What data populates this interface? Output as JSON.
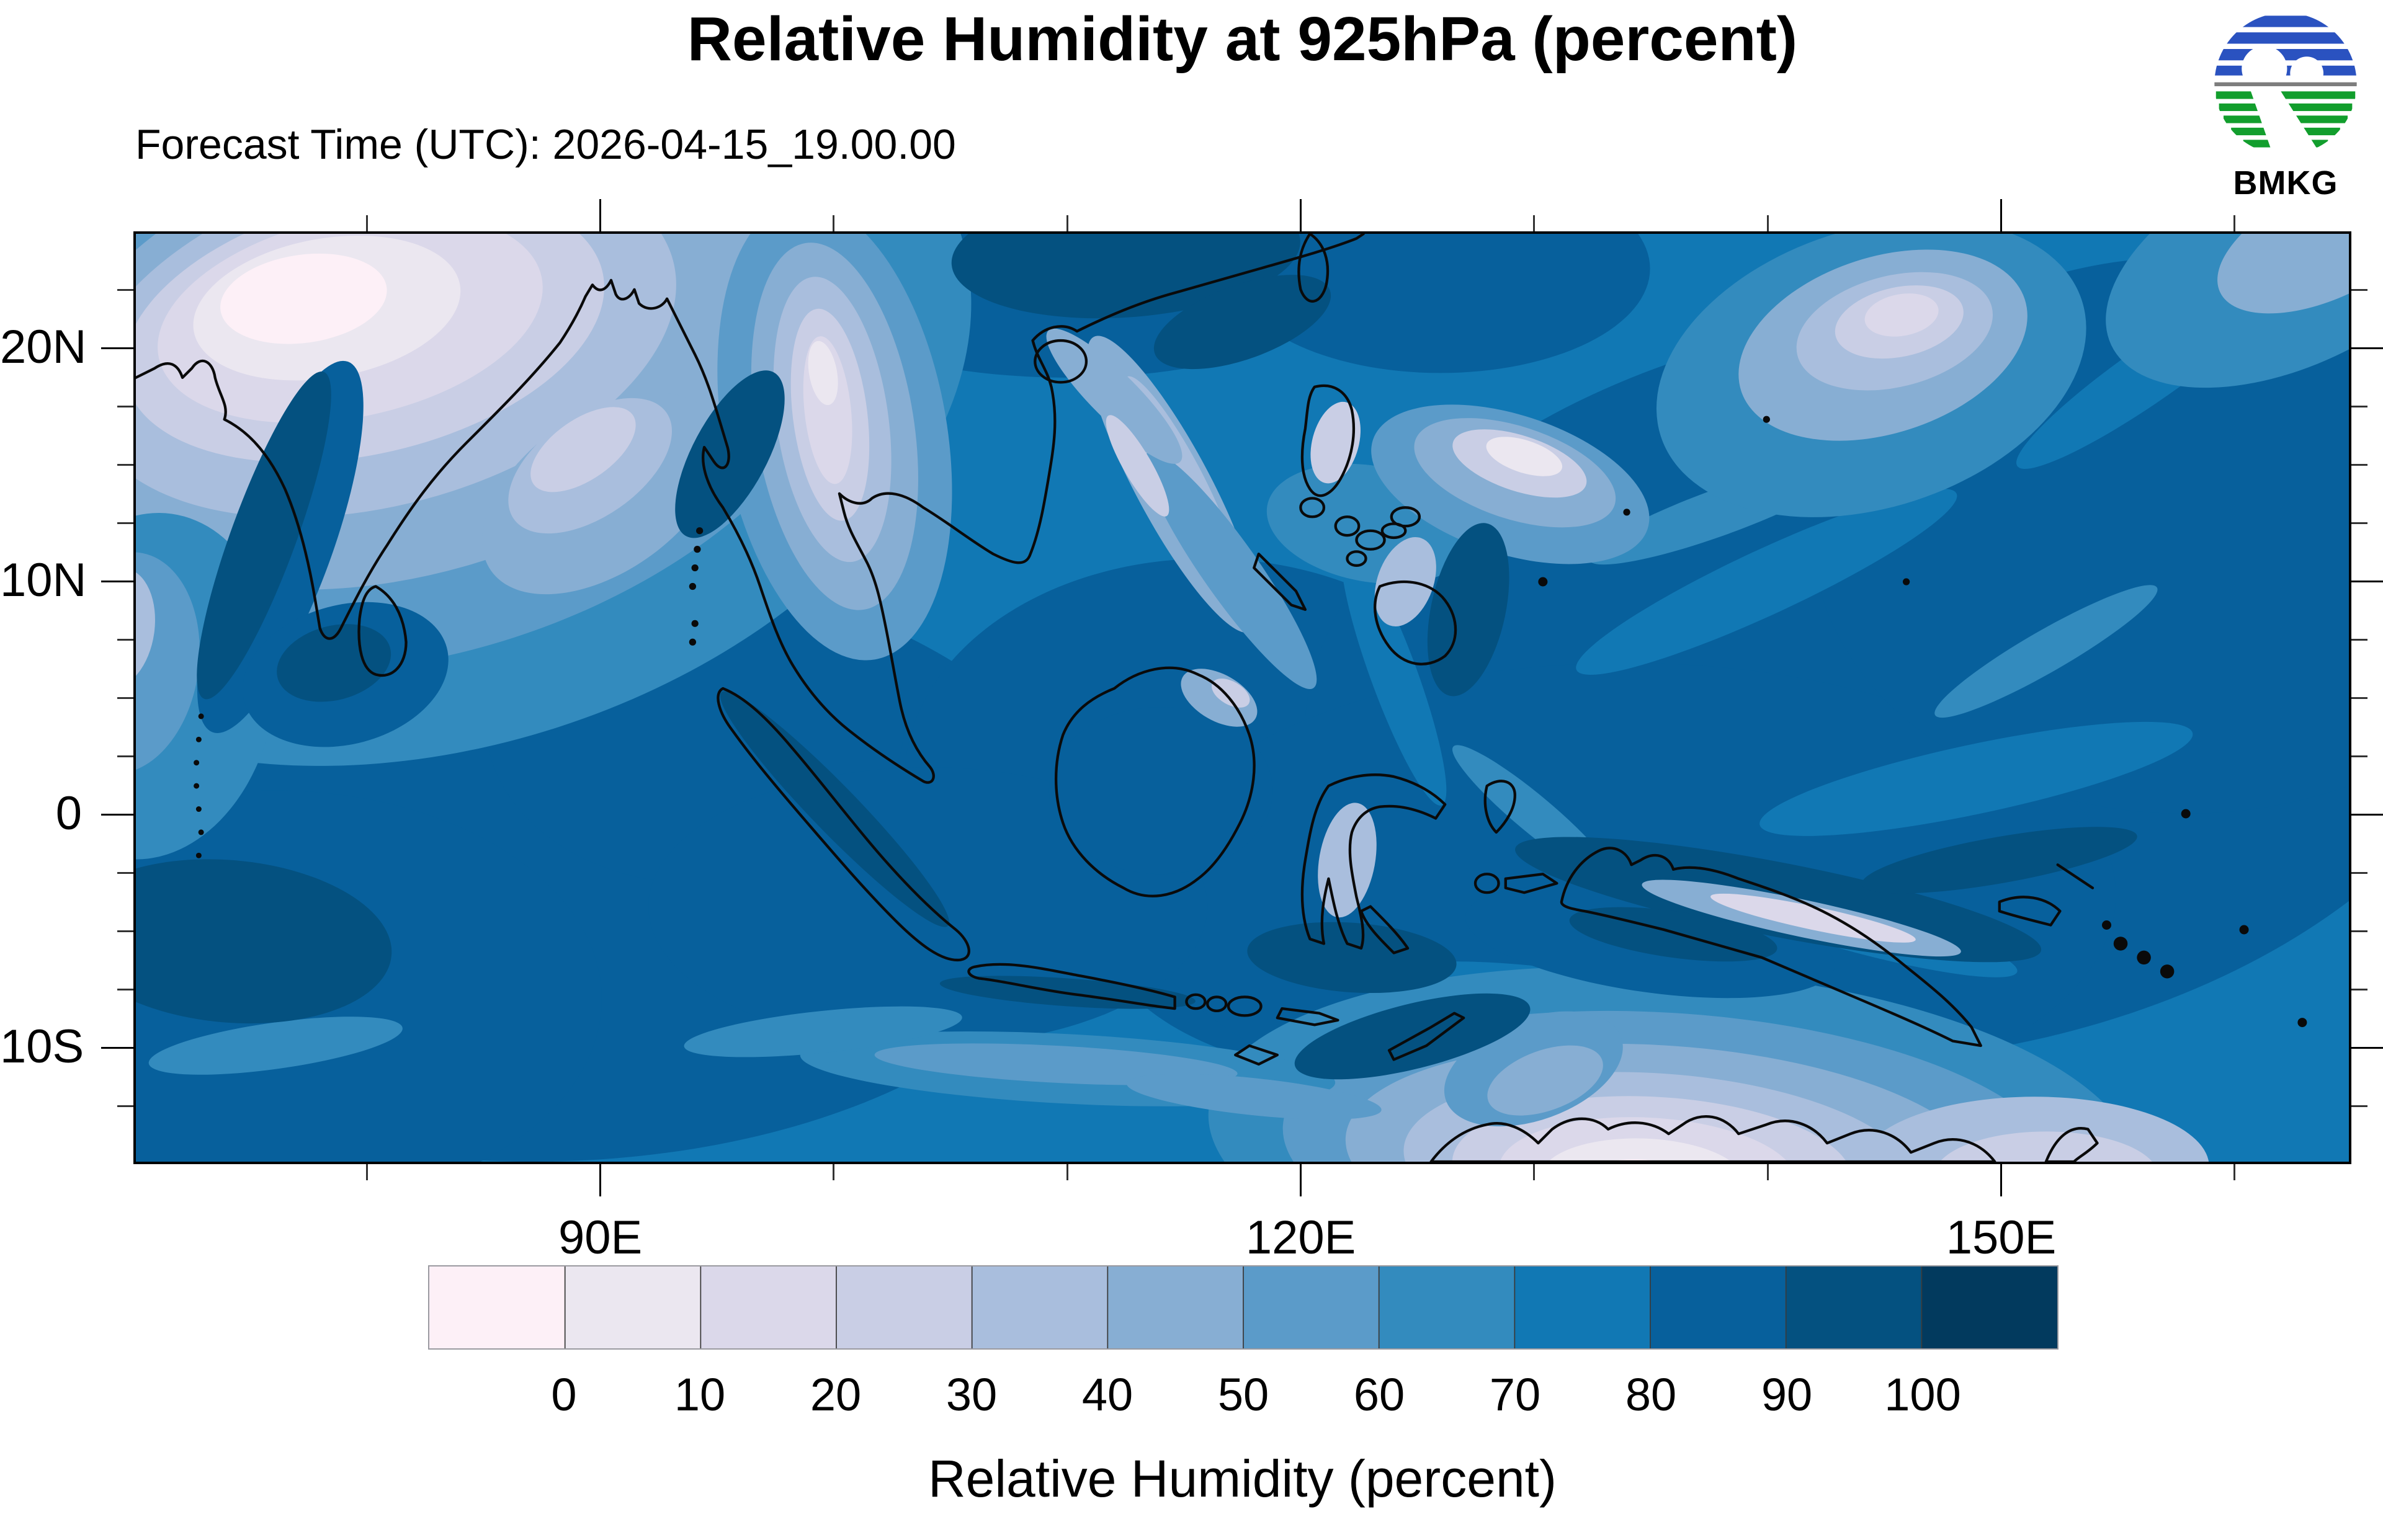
{
  "header": {
    "title": "Relative Humidity at 925hPa (percent)",
    "forecast_time_label": "Forecast Time (UTC): 2026-04-15_19.00.00",
    "logo_text": "BMKG"
  },
  "map": {
    "domain": {
      "lon_min": 70,
      "lon_max": 165,
      "lat_min": -15,
      "lat_max": 25
    },
    "lat_labels": [
      {
        "text": "20N",
        "value": 20
      },
      {
        "text": "10N",
        "value": 10
      },
      {
        "text": "0",
        "value": 0
      },
      {
        "text": "10S",
        "value": -10
      }
    ],
    "lon_labels": [
      {
        "text": "90E",
        "value": 90
      },
      {
        "text": "120E",
        "value": 120
      },
      {
        "text": "150E",
        "value": 150
      }
    ],
    "lat_minor_step": 2.5,
    "lon_minor_step": 10
  },
  "legend": {
    "title": "Relative Humidity (percent)",
    "tick_labels": [
      "0",
      "10",
      "20",
      "30",
      "40",
      "50",
      "60",
      "70",
      "80",
      "90",
      "100"
    ],
    "colors": [
      "#fdf0f7",
      "#ebe7f0",
      "#dbd8ea",
      "#c9cee5",
      "#a9bedd",
      "#87aed3",
      "#5b9bc9",
      "#338bbe",
      "#1178b4",
      "#07609c",
      "#045180",
      "#023a5e"
    ]
  },
  "logo_colors": {
    "blue": "#2a52c0",
    "green": "#129e2d",
    "gray": "#7d7d7d"
  }
}
